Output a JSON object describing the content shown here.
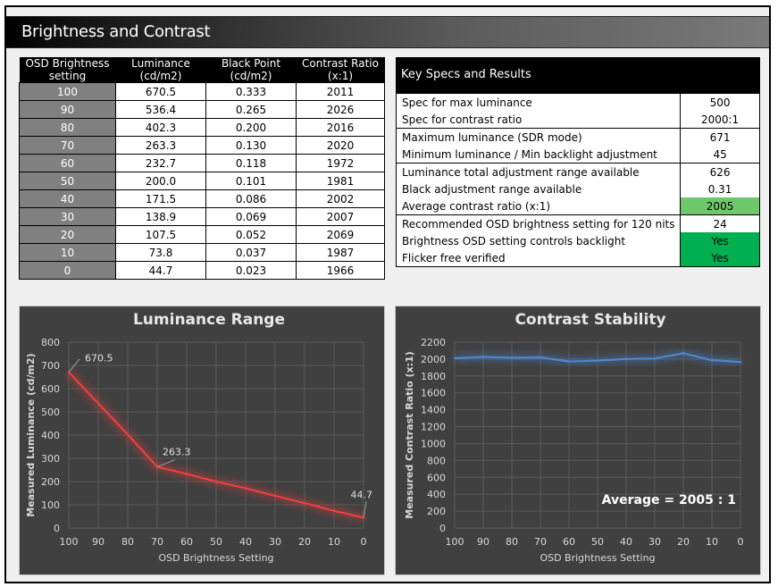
{
  "header": {
    "title": "Brightness and Contrast"
  },
  "table": {
    "headers": [
      [
        "OSD Brightness",
        "setting"
      ],
      [
        "Luminance",
        "(cd/m2)"
      ],
      [
        "Black Point",
        "(cd/m2)"
      ],
      [
        "Contrast Ratio",
        "(x:1)"
      ]
    ],
    "rows": [
      [
        "100",
        "670.5",
        "0.333",
        "2011"
      ],
      [
        "90",
        "536.4",
        "0.265",
        "2026"
      ],
      [
        "80",
        "402.3",
        "0.200",
        "2016"
      ],
      [
        "70",
        "263.3",
        "0.130",
        "2020"
      ],
      [
        "60",
        "232.7",
        "0.118",
        "1972"
      ],
      [
        "50",
        "200.0",
        "0.101",
        "1981"
      ],
      [
        "40",
        "171.5",
        "0.086",
        "2002"
      ],
      [
        "30",
        "138.9",
        "0.069",
        "2007"
      ],
      [
        "20",
        "107.5",
        "0.052",
        "2069"
      ],
      [
        "10",
        "73.8",
        "0.037",
        "1987"
      ],
      [
        "0",
        "44.7",
        "0.023",
        "1966"
      ]
    ]
  },
  "specs": {
    "title": "Key Specs and Results",
    "rows": [
      {
        "label": "Spec for max luminance",
        "value": "500",
        "highlight": "",
        "group_start": true
      },
      {
        "label": "Spec for contrast ratio",
        "value": "2000:1",
        "highlight": "",
        "group_start": false
      },
      {
        "label": "Maximum luminance (SDR mode)",
        "value": "671",
        "highlight": "",
        "group_start": true
      },
      {
        "label": "Minimum luminance / Min backlight adjustment",
        "value": "45",
        "highlight": "",
        "group_start": false
      },
      {
        "label": "Luminance total adjustment range available",
        "value": "626",
        "highlight": "",
        "group_start": true
      },
      {
        "label": "Black adjustment range available",
        "value": "0.31",
        "highlight": "",
        "group_start": false
      },
      {
        "label": "Average contrast ratio (x:1)",
        "value": "2005",
        "highlight": "light-green",
        "group_start": false
      },
      {
        "label": "Recommended OSD brightness setting for 120 nits",
        "value": "24",
        "highlight": "",
        "group_start": true
      },
      {
        "label": "Brightness OSD setting controls backlight",
        "value": "Yes",
        "highlight": "green",
        "group_start": false
      },
      {
        "label": "Flicker free verified",
        "value": "Yes",
        "highlight": "green",
        "group_start": false
      }
    ]
  },
  "colors": {
    "luminance_line": "#e84040",
    "contrast_line": "#4a86d0",
    "green_light": "#70c66a",
    "green": "#00b050",
    "chart_bg": "#404040"
  },
  "chart_data": [
    {
      "type": "line",
      "title": "Luminance Range",
      "xlabel": "OSD Brightness Setting",
      "ylabel": "Measured Luminance (cd/m2)",
      "categories": [
        "100",
        "90",
        "80",
        "70",
        "60",
        "50",
        "40",
        "30",
        "20",
        "10",
        "0"
      ],
      "values": [
        670.5,
        536.4,
        402.3,
        263.3,
        232.7,
        200.0,
        171.5,
        138.9,
        107.5,
        73.8,
        44.7
      ],
      "yticks": [
        0,
        100,
        200,
        300,
        400,
        500,
        600,
        700,
        800
      ],
      "ylim": [
        0,
        800
      ],
      "grid": true,
      "data_labels": [
        {
          "index": 0,
          "text": "670.5"
        },
        {
          "index": 3,
          "text": "263.3"
        },
        {
          "index": 10,
          "text": "44.7"
        }
      ]
    },
    {
      "type": "line",
      "title": "Contrast Stability",
      "xlabel": "OSD Brightness Setting",
      "ylabel": "Measured Contrast Ratio (x:1)",
      "categories": [
        "100",
        "90",
        "80",
        "70",
        "60",
        "50",
        "40",
        "30",
        "20",
        "10",
        "0"
      ],
      "values": [
        2011,
        2026,
        2016,
        2020,
        1972,
        1981,
        2002,
        2007,
        2069,
        1987,
        1966
      ],
      "yticks": [
        0,
        200,
        400,
        600,
        800,
        1000,
        1200,
        1400,
        1600,
        1800,
        2000,
        2200
      ],
      "ylim": [
        0,
        2200
      ],
      "grid": true,
      "annotation": "Average =  2005 : 1"
    }
  ]
}
